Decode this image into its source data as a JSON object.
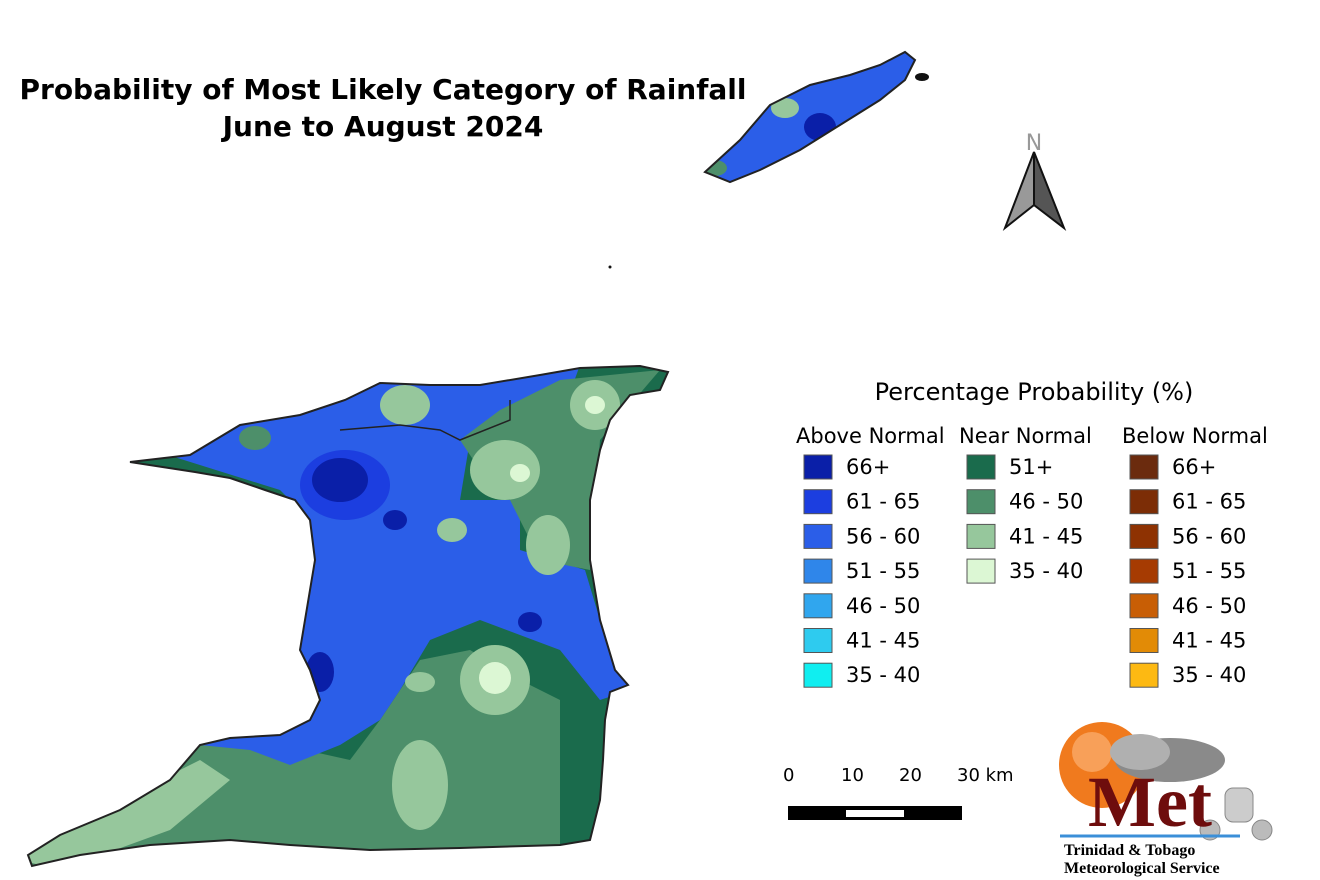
{
  "title": {
    "line1": "Probability of Most Likely Category of Rainfall",
    "line2": "June to August 2024"
  },
  "north_label": "N",
  "legend": {
    "title": "Percentage Probability (%)",
    "groups": [
      {
        "name": "Above Normal",
        "items": [
          {
            "label": "66+",
            "color": "#0a1fa8"
          },
          {
            "label": "61 - 65",
            "color": "#1c3ee0"
          },
          {
            "label": "56 - 60",
            "color": "#2b5ee8"
          },
          {
            "label": "51 - 55",
            "color": "#2f86ea"
          },
          {
            "label": "46 - 50",
            "color": "#30a6ee"
          },
          {
            "label": "41 - 45",
            "color": "#2ecbef"
          },
          {
            "label": "35 - 40",
            "color": "#10eef0"
          }
        ]
      },
      {
        "name": "Near Normal",
        "items": [
          {
            "label": "51+",
            "color": "#1a6b4c"
          },
          {
            "label": "46 - 50",
            "color": "#4d8f6a"
          },
          {
            "label": "41 - 45",
            "color": "#96c79c"
          },
          {
            "label": "35 - 40",
            "color": "#dcf7d4"
          }
        ]
      },
      {
        "name": "Below Normal",
        "items": [
          {
            "label": "66+",
            "color": "#6b2b0e"
          },
          {
            "label": "61 - 65",
            "color": "#7c2d06"
          },
          {
            "label": "56 - 60",
            "color": "#8e3202"
          },
          {
            "label": "51 - 55",
            "color": "#a63b02"
          },
          {
            "label": "46 - 50",
            "color": "#c85e05"
          },
          {
            "label": "41 - 45",
            "color": "#e28b06"
          },
          {
            "label": "35 - 40",
            "color": "#fdb912"
          }
        ]
      }
    ]
  },
  "scale_bar": {
    "labels": [
      "0",
      "10",
      "20",
      "30 km"
    ]
  },
  "logo": {
    "mark": "Met",
    "line1": "Trinidad & Tobago",
    "line2": "Meteorological Service"
  }
}
